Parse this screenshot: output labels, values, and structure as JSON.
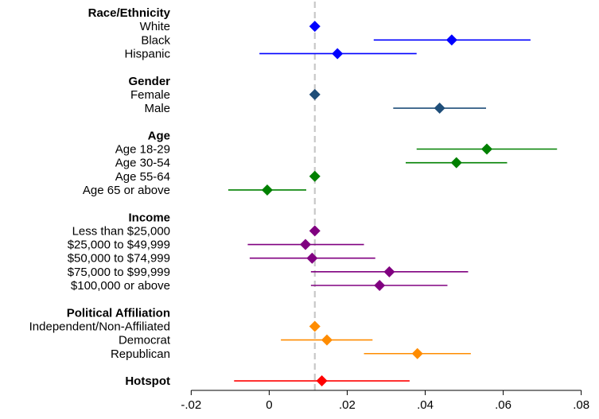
{
  "chart_data": {
    "type": "scatter",
    "subtype": "coefficient plot with 95% confidence intervals",
    "reference_line": {
      "x": 0.0117,
      "style": "dashed",
      "color": "#c8c8c8"
    },
    "xlim": [
      -0.0217,
      0.0815
    ],
    "xticks": [
      -0.02,
      0,
      0.02,
      0.04,
      0.06,
      0.08
    ],
    "xtick_labels": [
      "-.02",
      "0",
      ".02",
      ".04",
      ".06",
      ".08"
    ],
    "grid": false,
    "groups": [
      {
        "header": "Race/Ethnicity",
        "color": "#0000ff",
        "items": [
          {
            "label": "White",
            "estimate": 0.0117,
            "ci": null
          },
          {
            "label": "Black",
            "estimate": 0.0468,
            "ci": [
              0.0268,
              0.067
            ]
          },
          {
            "label": "Hispanic",
            "estimate": 0.0175,
            "ci": [
              -0.0025,
              0.0378
            ]
          }
        ]
      },
      {
        "header": "Gender",
        "color": "#1f4e79",
        "items": [
          {
            "label": "Female",
            "estimate": 0.0117,
            "ci": null
          },
          {
            "label": "Male",
            "estimate": 0.0437,
            "ci": [
              0.0318,
              0.0556
            ]
          }
        ]
      },
      {
        "header": "Age",
        "color": "#008000",
        "items": [
          {
            "label": "Age 18-29",
            "estimate": 0.0558,
            "ci": [
              0.0378,
              0.0738
            ]
          },
          {
            "label": "Age 30-54",
            "estimate": 0.048,
            "ci": [
              0.035,
              0.061
            ]
          },
          {
            "label": "Age 55-64",
            "estimate": 0.0117,
            "ci": null
          },
          {
            "label": "Age 65 or above",
            "estimate": -0.0005,
            "ci": [
              -0.0105,
              0.0095
            ]
          }
        ]
      },
      {
        "header": "Income",
        "color": "#800080",
        "items": [
          {
            "label": "Less than $25,000",
            "estimate": 0.0117,
            "ci": null
          },
          {
            "label": "$25,000 to $49,999",
            "estimate": 0.0093,
            "ci": [
              -0.0055,
              0.0243
            ]
          },
          {
            "label": "$50,000 to $74,999",
            "estimate": 0.011,
            "ci": [
              -0.005,
              0.0272
            ]
          },
          {
            "label": "$75,000 to $99,999",
            "estimate": 0.0308,
            "ci": [
              0.0107,
              0.051
            ]
          },
          {
            "label": "$100,000 or above",
            "estimate": 0.0283,
            "ci": [
              0.0107,
              0.0457
            ]
          }
        ]
      },
      {
        "header": "Political Affiliation",
        "color": "#ff8c00",
        "items": [
          {
            "label": "Independent/Non-Affiliated",
            "estimate": 0.0117,
            "ci": null
          },
          {
            "label": "Democrat",
            "estimate": 0.0148,
            "ci": [
              0.003,
              0.0265
            ]
          },
          {
            "label": "Republican",
            "estimate": 0.038,
            "ci": [
              0.0243,
              0.0517
            ]
          }
        ]
      },
      {
        "header": "Hotspot",
        "color": "#ff0000",
        "items": [
          {
            "label": "",
            "estimate": 0.0135,
            "ci": [
              -0.009,
              0.036
            ]
          }
        ]
      }
    ]
  }
}
